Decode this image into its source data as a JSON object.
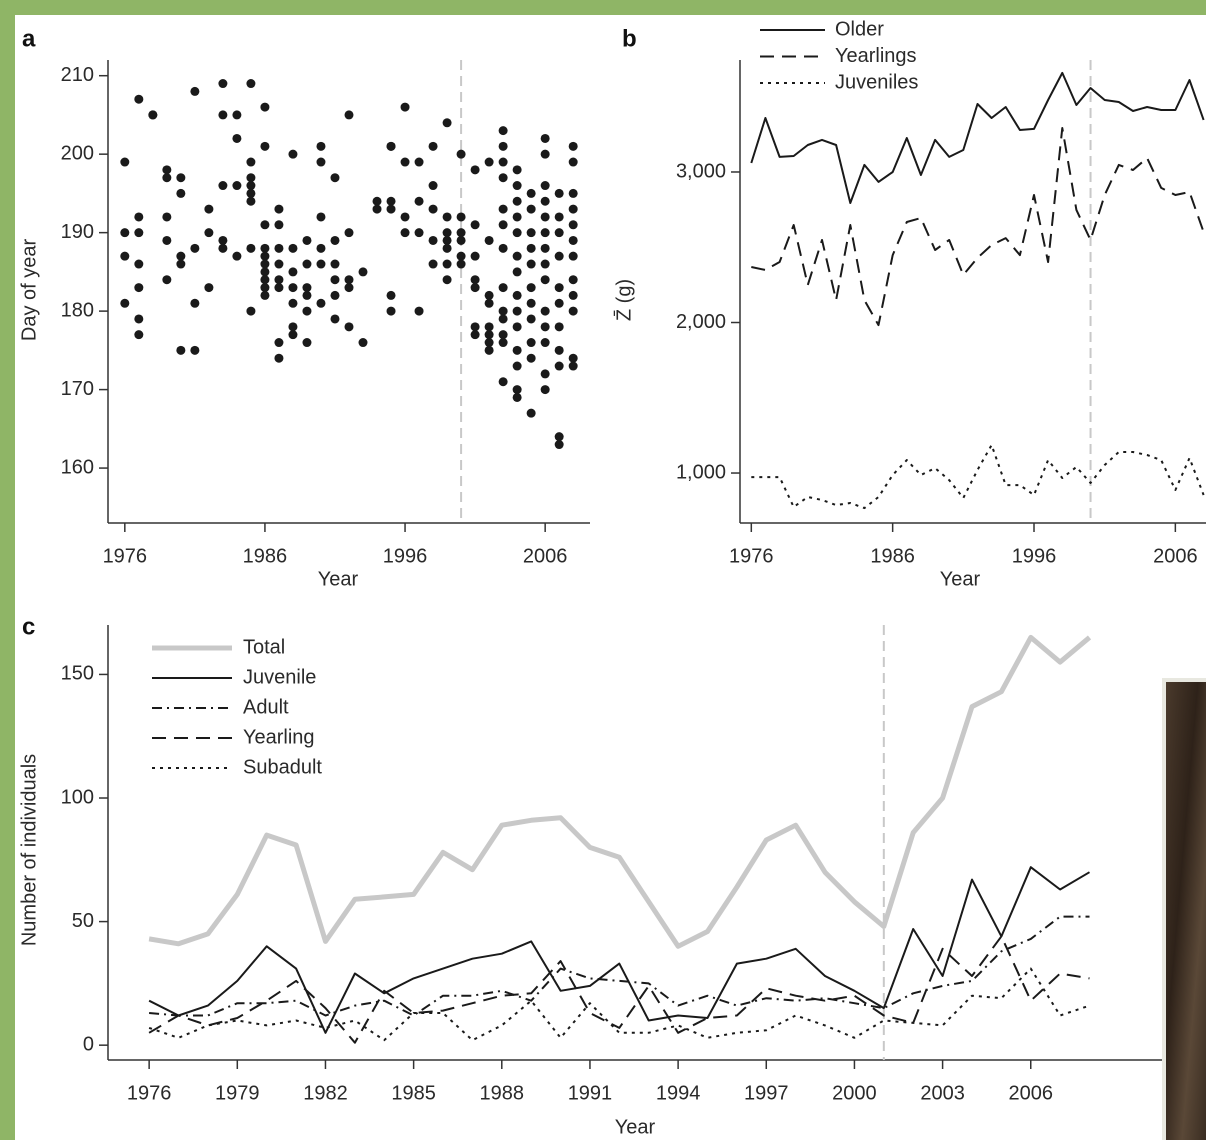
{
  "chart_data": [
    {
      "type": "scatter",
      "panel": "a",
      "x_label": "Year",
      "y_label": "Day of year",
      "xlim": [
        1974.8,
        2009.2
      ],
      "xticks": [
        1976,
        1986,
        1996,
        2006
      ],
      "ylim": [
        153,
        212
      ],
      "yticks": [
        160,
        170,
        180,
        190,
        200,
        210
      ],
      "vline": 2000,
      "color": "#1a1a1a",
      "x": [
        1976,
        1976,
        1976,
        1976,
        1977,
        1977,
        1977,
        1977,
        1977,
        1977,
        1977,
        1978,
        1978,
        1979,
        1979,
        1979,
        1979,
        1979,
        1980,
        1980,
        1980,
        1980,
        1980,
        1981,
        1981,
        1981,
        1981,
        1982,
        1982,
        1982,
        1983,
        1983,
        1983,
        1983,
        1983,
        1984,
        1984,
        1984,
        1984,
        1985,
        1985,
        1985,
        1985,
        1985,
        1985,
        1985,
        1985,
        1986,
        1986,
        1986,
        1986,
        1986,
        1986,
        1986,
        1986,
        1986,
        1986,
        1987,
        1987,
        1987,
        1987,
        1987,
        1987,
        1987,
        1987,
        1988,
        1988,
        1988,
        1988,
        1988,
        1988,
        1988,
        1989,
        1989,
        1989,
        1989,
        1989,
        1989,
        1990,
        1990,
        1990,
        1990,
        1990,
        1990,
        1991,
        1991,
        1991,
        1991,
        1991,
        1991,
        1992,
        1992,
        1992,
        1992,
        1992,
        1993,
        1993,
        1994,
        1994,
        1995,
        1995,
        1995,
        1995,
        1995,
        1995,
        1996,
        1996,
        1996,
        1996,
        1997,
        1997,
        1997,
        1997,
        1998,
        1998,
        1998,
        1998,
        1998,
        1999,
        1999,
        1999,
        1999,
        1999,
        1999,
        1999,
        2000,
        2000,
        2000,
        2000,
        2000,
        2000,
        2001,
        2001,
        2001,
        2001,
        2001,
        2001,
        2001,
        2002,
        2002,
        2002,
        2002,
        2002,
        2002,
        2002,
        2002,
        2003,
        2003,
        2003,
        2003,
        2003,
        2003,
        2003,
        2003,
        2003,
        2003,
        2003,
        2003,
        2003,
        2004,
        2004,
        2004,
        2004,
        2004,
        2004,
        2004,
        2004,
        2004,
        2004,
        2004,
        2004,
        2004,
        2004,
        2005,
        2005,
        2005,
        2005,
        2005,
        2005,
        2005,
        2005,
        2005,
        2005,
        2005,
        2006,
        2006,
        2006,
        2006,
        2006,
        2006,
        2006,
        2006,
        2006,
        2006,
        2006,
        2006,
        2006,
        2006,
        2007,
        2007,
        2007,
        2007,
        2007,
        2007,
        2007,
        2007,
        2007,
        2007,
        2007,
        2008,
        2008,
        2008,
        2008,
        2008,
        2008,
        2008,
        2008,
        2008,
        2008,
        2008,
        2008
      ],
      "values": [
        199,
        190,
        187,
        181,
        207,
        192,
        190,
        186,
        183,
        179,
        177,
        205,
        205,
        198,
        197,
        192,
        189,
        184,
        197,
        195,
        187,
        186,
        175,
        208,
        188,
        181,
        175,
        193,
        190,
        183,
        209,
        205,
        196,
        189,
        188,
        205,
        202,
        196,
        187,
        209,
        199,
        197,
        196,
        195,
        194,
        188,
        180,
        206,
        201,
        191,
        188,
        187,
        186,
        185,
        184,
        183,
        182,
        193,
        191,
        188,
        186,
        184,
        183,
        176,
        174,
        200,
        188,
        185,
        183,
        181,
        178,
        177,
        189,
        186,
        183,
        182,
        180,
        176,
        201,
        199,
        192,
        188,
        186,
        181,
        197,
        189,
        186,
        184,
        182,
        179,
        205,
        190,
        184,
        183,
        178,
        185,
        176,
        194,
        193,
        201,
        201,
        194,
        193,
        182,
        180,
        206,
        199,
        192,
        190,
        199,
        194,
        190,
        180,
        201,
        196,
        193,
        189,
        186,
        204,
        192,
        190,
        189,
        188,
        186,
        184,
        200,
        192,
        190,
        189,
        187,
        186,
        198,
        191,
        187,
        184,
        183,
        178,
        177,
        199,
        189,
        182,
        181,
        178,
        177,
        176,
        175,
        203,
        201,
        199,
        197,
        193,
        191,
        188,
        183,
        180,
        179,
        177,
        176,
        171,
        198,
        196,
        194,
        192,
        190,
        187,
        185,
        182,
        180,
        178,
        175,
        173,
        170,
        169,
        195,
        193,
        190,
        188,
        186,
        183,
        181,
        179,
        176,
        174,
        167,
        202,
        200,
        196,
        194,
        192,
        190,
        188,
        186,
        184,
        180,
        178,
        176,
        172,
        170,
        195,
        192,
        190,
        187,
        183,
        181,
        178,
        175,
        173,
        164,
        163,
        201,
        199,
        195,
        193,
        191,
        189,
        187,
        184,
        182,
        180,
        174,
        173
      ]
    },
    {
      "type": "line",
      "panel": "b",
      "x_label": "Year",
      "y_label": "Z̄ (g)",
      "legend": "upper left",
      "xlim": [
        1975.2,
        2009.3
      ],
      "xticks": [
        1976,
        1986,
        1996,
        2006
      ],
      "ylim": [
        668,
        3744
      ],
      "yticks": [
        {
          "value": 1000,
          "label": "1,000"
        },
        {
          "value": 2000,
          "label": "2,000"
        },
        {
          "value": 3000,
          "label": "3,000"
        }
      ],
      "vline": 2000,
      "x": [
        1976,
        1977,
        1978,
        1979,
        1980,
        1981,
        1982,
        1983,
        1984,
        1985,
        1986,
        1987,
        1988,
        1989,
        1990,
        1991,
        1992,
        1993,
        1994,
        1995,
        1996,
        1997,
        1998,
        1999,
        2000,
        2001,
        2002,
        2003,
        2004,
        2005,
        2006,
        2007,
        2008
      ],
      "series": [
        {
          "name": "Older",
          "color": "#1a1a1a",
          "line_style": "solid",
          "values": [
            3060,
            3359,
            3100,
            3106,
            3179,
            3213,
            3179,
            2794,
            3047,
            2934,
            3000,
            3226,
            2980,
            3213,
            3100,
            3146,
            3452,
            3359,
            3432,
            3279,
            3286,
            3478,
            3658,
            3445,
            3558,
            3478,
            3465,
            3405,
            3432,
            3412,
            3412,
            3611,
            3346
          ]
        },
        {
          "name": "Yearlings",
          "color": "#1a1a1a",
          "line_style": "dashed",
          "values": [
            2369,
            2349,
            2402,
            2648,
            2249,
            2548,
            2149,
            2648,
            2149,
            1983,
            2448,
            2668,
            2694,
            2482,
            2548,
            2316,
            2429,
            2515,
            2561,
            2448,
            2847,
            2402,
            3292,
            2748,
            2548,
            2847,
            3047,
            3013,
            3093,
            2894,
            2847,
            2867,
            2601
          ]
        },
        {
          "name": "Juveniles",
          "color": "#1a1a1a",
          "line_style": "dotted",
          "values": [
            973,
            973,
            973,
            774,
            841,
            821,
            787,
            801,
            767,
            841,
            987,
            1086,
            987,
            1033,
            953,
            834,
            1020,
            1186,
            920,
            920,
            854,
            1086,
            967,
            1040,
            934,
            1053,
            1140,
            1140,
            1120,
            1086,
            887,
            1100,
            854
          ]
        }
      ]
    },
    {
      "type": "line",
      "panel": "c",
      "x_label": "Year",
      "y_label": "Number of individuals",
      "legend": "upper left",
      "xlim": [
        1974.6,
        2010.5
      ],
      "xticks": [
        1976,
        1979,
        1982,
        1985,
        1988,
        1991,
        1994,
        1997,
        2000,
        2003,
        2006
      ],
      "ylim": [
        -6,
        170
      ],
      "yticks": [
        0,
        50,
        100,
        150
      ],
      "vline": 2001,
      "x": [
        1976,
        1977,
        1978,
        1979,
        1980,
        1981,
        1982,
        1983,
        1984,
        1985,
        1986,
        1987,
        1988,
        1989,
        1990,
        1991,
        1992,
        1993,
        1994,
        1995,
        1996,
        1997,
        1998,
        1999,
        2000,
        2001,
        2002,
        2003,
        2004,
        2005,
        2006,
        2007,
        2008
      ],
      "series": [
        {
          "name": "Total",
          "color": "#c8c8c8",
          "line_style": "solid",
          "values": [
            43,
            41,
            45,
            61,
            85,
            81,
            42,
            59,
            60,
            61,
            78,
            71,
            89,
            91,
            92,
            80,
            76,
            58,
            40,
            46,
            64,
            83,
            89,
            70,
            58,
            48,
            86,
            100,
            137,
            143,
            165,
            155,
            165
          ]
        },
        {
          "name": "Juvenile",
          "color": "#1a1a1a",
          "line_style": "solid",
          "values": [
            18,
            12,
            16,
            26,
            40,
            31,
            5,
            29,
            21,
            27,
            31,
            35,
            37,
            42,
            22,
            24,
            33,
            10,
            12,
            11,
            33,
            35,
            39,
            28,
            22,
            15,
            47,
            28,
            67,
            44,
            72,
            63,
            70
          ]
        },
        {
          "name": "Adult",
          "color": "#1a1a1a",
          "line_style": "dashdot",
          "values": [
            13,
            12,
            12,
            17,
            17,
            18,
            12,
            16,
            18,
            12,
            20,
            20,
            22,
            18,
            31,
            27,
            26,
            25,
            16,
            20,
            16,
            19,
            18,
            19,
            17,
            15,
            21,
            24,
            26,
            38,
            43,
            52,
            52
          ]
        },
        {
          "name": "Yearling",
          "color": "#1a1a1a",
          "line_style": "dashed",
          "values": [
            5,
            12,
            8,
            11,
            18,
            26,
            15,
            1,
            22,
            13,
            14,
            17,
            20,
            21,
            34,
            13,
            7,
            24,
            5,
            11,
            12,
            23,
            20,
            18,
            20,
            12,
            9,
            39,
            28,
            44,
            18,
            29,
            27
          ]
        },
        {
          "name": "Subadult",
          "color": "#1a1a1a",
          "line_style": "dotted",
          "values": [
            7,
            3,
            8,
            10,
            8,
            10,
            7,
            10,
            2,
            13,
            13,
            2,
            8,
            18,
            3,
            17,
            5,
            5,
            8,
            3,
            5,
            6,
            12,
            8,
            3,
            10,
            9,
            8,
            20,
            19,
            31,
            12,
            16
          ]
        }
      ]
    }
  ]
}
